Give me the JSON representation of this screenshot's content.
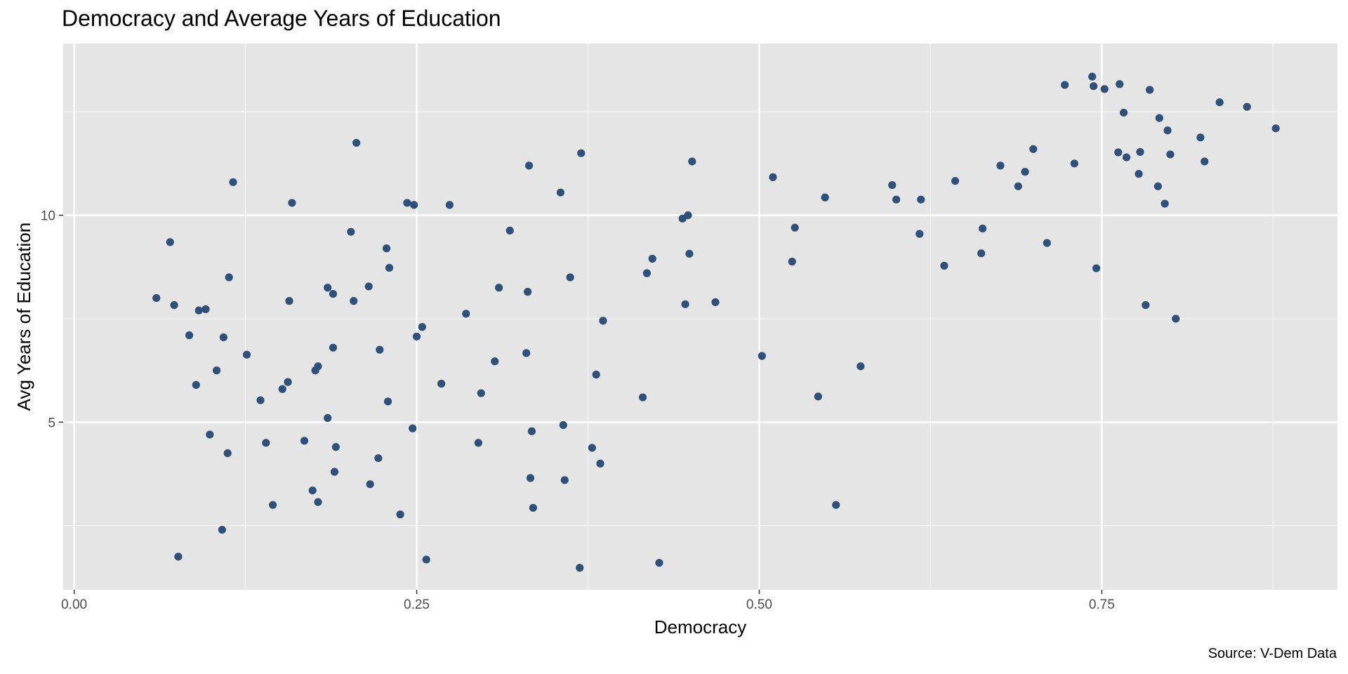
{
  "chart_data": {
    "type": "scatter",
    "title": "Democracy and Average Years of Education",
    "xlabel": "Democracy",
    "ylabel": "Avg Years of Education",
    "caption": "Source: V-Dem Data",
    "xlim": [
      -0.008,
      0.922
    ],
    "ylim": [
      0.95,
      14.15
    ],
    "x_ticks": [
      0.0,
      0.25,
      0.5,
      0.75
    ],
    "x_tick_labels": [
      "0.00",
      "0.25",
      "0.50",
      "0.75"
    ],
    "y_ticks": [
      5,
      10
    ],
    "y_tick_labels": [
      "5",
      "10"
    ],
    "grid": true,
    "point_color": "#2e5079",
    "panel_color": "#e5e5e5",
    "points": [
      [
        0.06,
        8.0
      ],
      [
        0.07,
        9.35
      ],
      [
        0.073,
        7.83
      ],
      [
        0.076,
        1.75
      ],
      [
        0.084,
        7.1
      ],
      [
        0.089,
        5.9
      ],
      [
        0.091,
        7.7
      ],
      [
        0.096,
        7.73
      ],
      [
        0.099,
        4.7
      ],
      [
        0.104,
        6.25
      ],
      [
        0.109,
        7.05
      ],
      [
        0.108,
        2.4
      ],
      [
        0.112,
        4.25
      ],
      [
        0.113,
        8.5
      ],
      [
        0.116,
        10.8
      ],
      [
        0.126,
        6.63
      ],
      [
        0.136,
        5.53
      ],
      [
        0.14,
        4.5
      ],
      [
        0.145,
        3.0
      ],
      [
        0.152,
        5.8
      ],
      [
        0.156,
        5.97
      ],
      [
        0.157,
        7.93
      ],
      [
        0.159,
        10.3
      ],
      [
        0.168,
        4.55
      ],
      [
        0.174,
        3.35
      ],
      [
        0.176,
        6.25
      ],
      [
        0.178,
        6.35
      ],
      [
        0.178,
        3.07
      ],
      [
        0.185,
        8.25
      ],
      [
        0.185,
        5.1
      ],
      [
        0.189,
        8.1
      ],
      [
        0.189,
        6.8
      ],
      [
        0.19,
        3.8
      ],
      [
        0.191,
        4.4
      ],
      [
        0.202,
        9.6
      ],
      [
        0.204,
        7.93
      ],
      [
        0.206,
        11.75
      ],
      [
        0.215,
        8.28
      ],
      [
        0.216,
        3.5
      ],
      [
        0.222,
        4.13
      ],
      [
        0.223,
        6.75
      ],
      [
        0.228,
        9.2
      ],
      [
        0.229,
        5.5
      ],
      [
        0.23,
        8.73
      ],
      [
        0.238,
        2.77
      ],
      [
        0.243,
        10.3
      ],
      [
        0.247,
        4.85
      ],
      [
        0.248,
        10.25
      ],
      [
        0.25,
        7.07
      ],
      [
        0.254,
        7.3
      ],
      [
        0.257,
        1.68
      ],
      [
        0.268,
        5.93
      ],
      [
        0.274,
        10.25
      ],
      [
        0.286,
        7.62
      ],
      [
        0.295,
        4.5
      ],
      [
        0.297,
        5.7
      ],
      [
        0.307,
        6.47
      ],
      [
        0.31,
        8.25
      ],
      [
        0.318,
        9.63
      ],
      [
        0.33,
        6.67
      ],
      [
        0.331,
        8.15
      ],
      [
        0.332,
        11.2
      ],
      [
        0.333,
        3.65
      ],
      [
        0.334,
        4.78
      ],
      [
        0.335,
        2.93
      ],
      [
        0.355,
        10.55
      ],
      [
        0.357,
        4.93
      ],
      [
        0.358,
        3.6
      ],
      [
        0.362,
        8.5
      ],
      [
        0.369,
        1.48
      ],
      [
        0.37,
        11.5
      ],
      [
        0.378,
        4.38
      ],
      [
        0.381,
        6.15
      ],
      [
        0.384,
        4.0
      ],
      [
        0.386,
        7.45
      ],
      [
        0.415,
        5.6
      ],
      [
        0.418,
        8.6
      ],
      [
        0.422,
        8.95
      ],
      [
        0.427,
        1.6
      ],
      [
        0.444,
        9.92
      ],
      [
        0.446,
        7.85
      ],
      [
        0.448,
        10.0
      ],
      [
        0.449,
        9.07
      ],
      [
        0.451,
        11.3
      ],
      [
        0.468,
        7.9
      ],
      [
        0.502,
        6.6
      ],
      [
        0.51,
        10.92
      ],
      [
        0.524,
        8.88
      ],
      [
        0.526,
        9.7
      ],
      [
        0.543,
        5.62
      ],
      [
        0.548,
        10.43
      ],
      [
        0.556,
        3.0
      ],
      [
        0.574,
        6.35
      ],
      [
        0.597,
        10.73
      ],
      [
        0.6,
        10.38
      ],
      [
        0.617,
        9.55
      ],
      [
        0.618,
        10.38
      ],
      [
        0.635,
        8.78
      ],
      [
        0.643,
        10.83
      ],
      [
        0.662,
        9.08
      ],
      [
        0.663,
        9.68
      ],
      [
        0.676,
        11.2
      ],
      [
        0.689,
        10.7
      ],
      [
        0.694,
        11.05
      ],
      [
        0.7,
        11.6
      ],
      [
        0.71,
        9.33
      ],
      [
        0.723,
        13.15
      ],
      [
        0.73,
        11.25
      ],
      [
        0.743,
        13.35
      ],
      [
        0.744,
        13.12
      ],
      [
        0.746,
        8.72
      ],
      [
        0.752,
        13.05
      ],
      [
        0.762,
        11.52
      ],
      [
        0.763,
        13.17
      ],
      [
        0.766,
        12.48
      ],
      [
        0.768,
        11.4
      ],
      [
        0.777,
        11.0
      ],
      [
        0.778,
        11.53
      ],
      [
        0.782,
        7.83
      ],
      [
        0.785,
        13.03
      ],
      [
        0.791,
        10.7
      ],
      [
        0.792,
        12.35
      ],
      [
        0.796,
        10.28
      ],
      [
        0.798,
        12.05
      ],
      [
        0.8,
        11.47
      ],
      [
        0.804,
        7.5
      ],
      [
        0.822,
        11.88
      ],
      [
        0.825,
        11.3
      ],
      [
        0.836,
        12.73
      ],
      [
        0.856,
        12.62
      ],
      [
        0.877,
        12.1
      ]
    ]
  }
}
